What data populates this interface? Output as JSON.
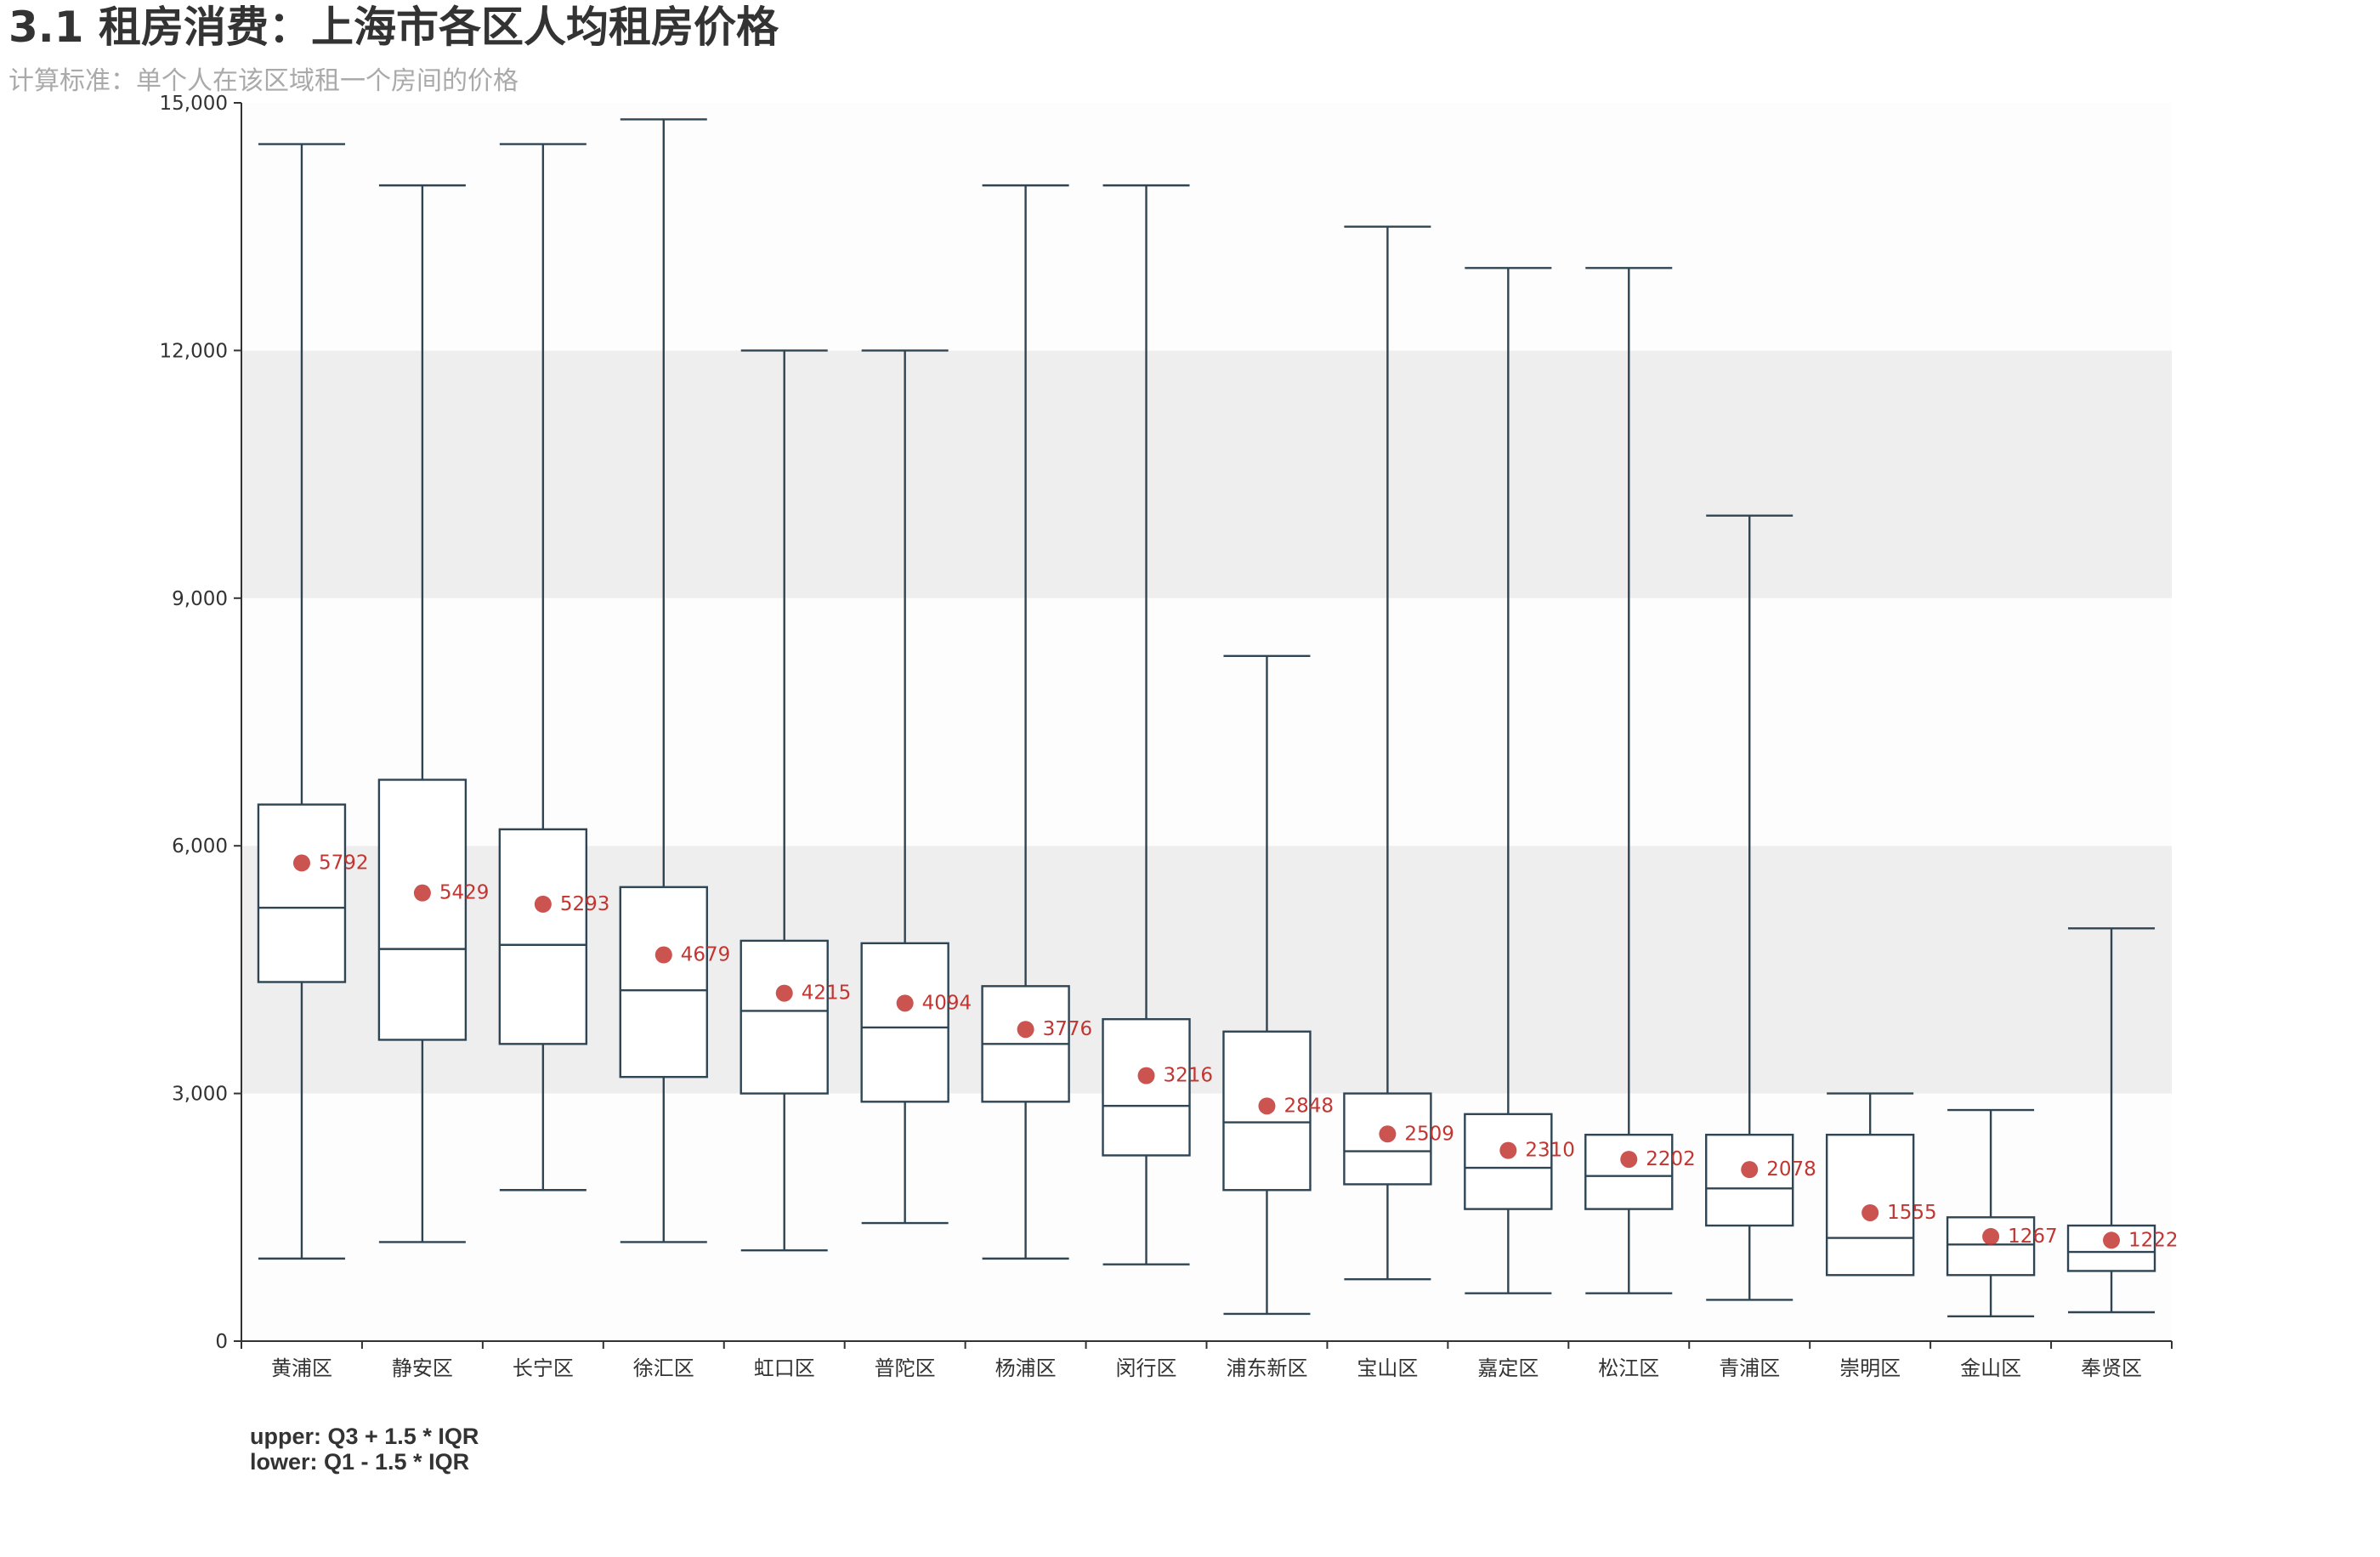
{
  "header": {
    "title": "3.1 租房消费：上海市各区人均租房价格",
    "subtitle": "计算标准：单个人在该区域租一个房间的价格"
  },
  "footnote": {
    "line1": "upper: Q3 + 1.5 * IQR",
    "line2": "lower: Q1 - 1.5 * IQR"
  },
  "colors": {
    "box_stroke": "#2f4554",
    "mean_marker": "#c23531",
    "band_fill": "#eeeeee",
    "axis": "#333333"
  },
  "chart_data": {
    "type": "boxplot",
    "ylim": [
      0,
      15000
    ],
    "yticks": [
      0,
      3000,
      6000,
      9000,
      12000,
      15000
    ],
    "ytick_labels": [
      "0",
      "3,000",
      "6,000",
      "9,000",
      "12,000",
      "15,000"
    ],
    "split_area": "alternating bands",
    "categories": [
      "黄浦区",
      "静安区",
      "长宁区",
      "徐汇区",
      "虹口区",
      "普陀区",
      "杨浦区",
      "闵行区",
      "浦东新区",
      "宝山区",
      "嘉定区",
      "松江区",
      "青浦区",
      "崇明区",
      "金山区",
      "奉贤区"
    ],
    "boxes": [
      {
        "low": 1000,
        "q1": 4350,
        "median": 5250,
        "q3": 6500,
        "high": 14500
      },
      {
        "low": 1200,
        "q1": 3650,
        "median": 4750,
        "q3": 6800,
        "high": 14000
      },
      {
        "low": 1830,
        "q1": 3600,
        "median": 4800,
        "q3": 6200,
        "high": 14500
      },
      {
        "low": 1200,
        "q1": 3200,
        "median": 4250,
        "q3": 5500,
        "high": 14800
      },
      {
        "low": 1100,
        "q1": 3000,
        "median": 4000,
        "q3": 4850,
        "high": 12000
      },
      {
        "low": 1430,
        "q1": 2900,
        "median": 3800,
        "q3": 4820,
        "high": 12000
      },
      {
        "low": 1000,
        "q1": 2900,
        "median": 3600,
        "q3": 4300,
        "high": 14000
      },
      {
        "low": 930,
        "q1": 2250,
        "median": 2850,
        "q3": 3900,
        "high": 14000
      },
      {
        "low": 330,
        "q1": 1830,
        "median": 2650,
        "q3": 3750,
        "high": 8300
      },
      {
        "low": 750,
        "q1": 1900,
        "median": 2300,
        "q3": 3000,
        "high": 13500
      },
      {
        "low": 580,
        "q1": 1600,
        "median": 2100,
        "q3": 2750,
        "high": 13000
      },
      {
        "low": 580,
        "q1": 1600,
        "median": 2000,
        "q3": 2500,
        "high": 13000
      },
      {
        "low": 500,
        "q1": 1400,
        "median": 1850,
        "q3": 2500,
        "high": 10000
      },
      {
        "low": 800,
        "q1": 800,
        "median": 1250,
        "q3": 2500,
        "high": 3000
      },
      {
        "low": 300,
        "q1": 800,
        "median": 1170,
        "q3": 1500,
        "high": 2800
      },
      {
        "low": 350,
        "q1": 850,
        "median": 1080,
        "q3": 1400,
        "high": 5000
      }
    ],
    "means": [
      5792,
      5429,
      5293,
      4679,
      4215,
      4094,
      3776,
      3216,
      2848,
      2509,
      2310,
      2202,
      2078,
      1555,
      1267,
      1222
    ],
    "mean_labels": [
      "5792",
      "5429",
      "5293",
      "4679",
      "4215",
      "4094",
      "3776",
      "3216",
      "2848",
      "2509",
      "2310",
      "2202",
      "2078",
      "1555",
      "1267",
      "1222"
    ]
  }
}
